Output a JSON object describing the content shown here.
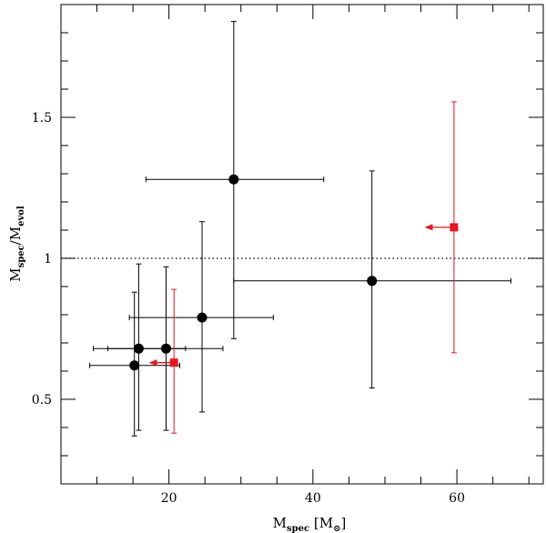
{
  "chart_data": {
    "type": "scatter",
    "title": "",
    "xlabel": {
      "main": "M",
      "sub": "spec",
      "unit_open": " [M",
      "unit_sub": "⊙",
      "unit_close": "]"
    },
    "ylabel": {
      "main": "M",
      "sub": "spec",
      "slash": "/M",
      "sub2": "evol"
    },
    "xlim": [
      5,
      72
    ],
    "ylim": [
      0.2,
      1.9
    ],
    "xticks_major": [
      20,
      40,
      60
    ],
    "xticks_minor_step": 5,
    "yticks_major": [
      0.5,
      1,
      1.5
    ],
    "ytick_labels": [
      "0.5",
      "1",
      "1.5"
    ],
    "yticks_minor_step": 0.1,
    "reference_line": {
      "y": 1.0,
      "style": "dotted"
    },
    "series": [
      {
        "name": "black circles",
        "marker": "circle",
        "color": "#000000",
        "points": [
          {
            "x": 15.2,
            "y": 0.62,
            "xerr": [
              9.0,
              21.5
            ],
            "yerr": [
              0.37,
              0.88
            ]
          },
          {
            "x": 15.8,
            "y": 0.68,
            "xerr": [
              9.5,
              22.3
            ],
            "yerr": [
              0.39,
              0.98
            ]
          },
          {
            "x": 19.6,
            "y": 0.68,
            "xerr": [
              11.5,
              27.5
            ],
            "yerr": [
              0.39,
              0.97
            ]
          },
          {
            "x": 24.6,
            "y": 0.79,
            "xerr": [
              14.5,
              34.5
            ],
            "yerr": [
              0.455,
              1.13
            ]
          },
          {
            "x": 29.0,
            "y": 1.28,
            "xerr": [
              16.8,
              41.5
            ],
            "yerr": [
              0.715,
              1.84
            ]
          },
          {
            "x": 48.2,
            "y": 0.92,
            "xerr": [
              29.0,
              67.5
            ],
            "yerr": [
              0.54,
              1.31
            ]
          }
        ]
      },
      {
        "name": "red squares",
        "marker": "square",
        "color": "#e8141e",
        "points": [
          {
            "x": 20.7,
            "y": 0.63,
            "yerr": [
              0.38,
              0.89
            ],
            "upper_limit_arrow_to": 17.2
          },
          {
            "x": 59.6,
            "y": 1.11,
            "yerr": [
              0.665,
              1.555
            ],
            "upper_limit_arrow_to": 55.5
          }
        ]
      }
    ]
  }
}
